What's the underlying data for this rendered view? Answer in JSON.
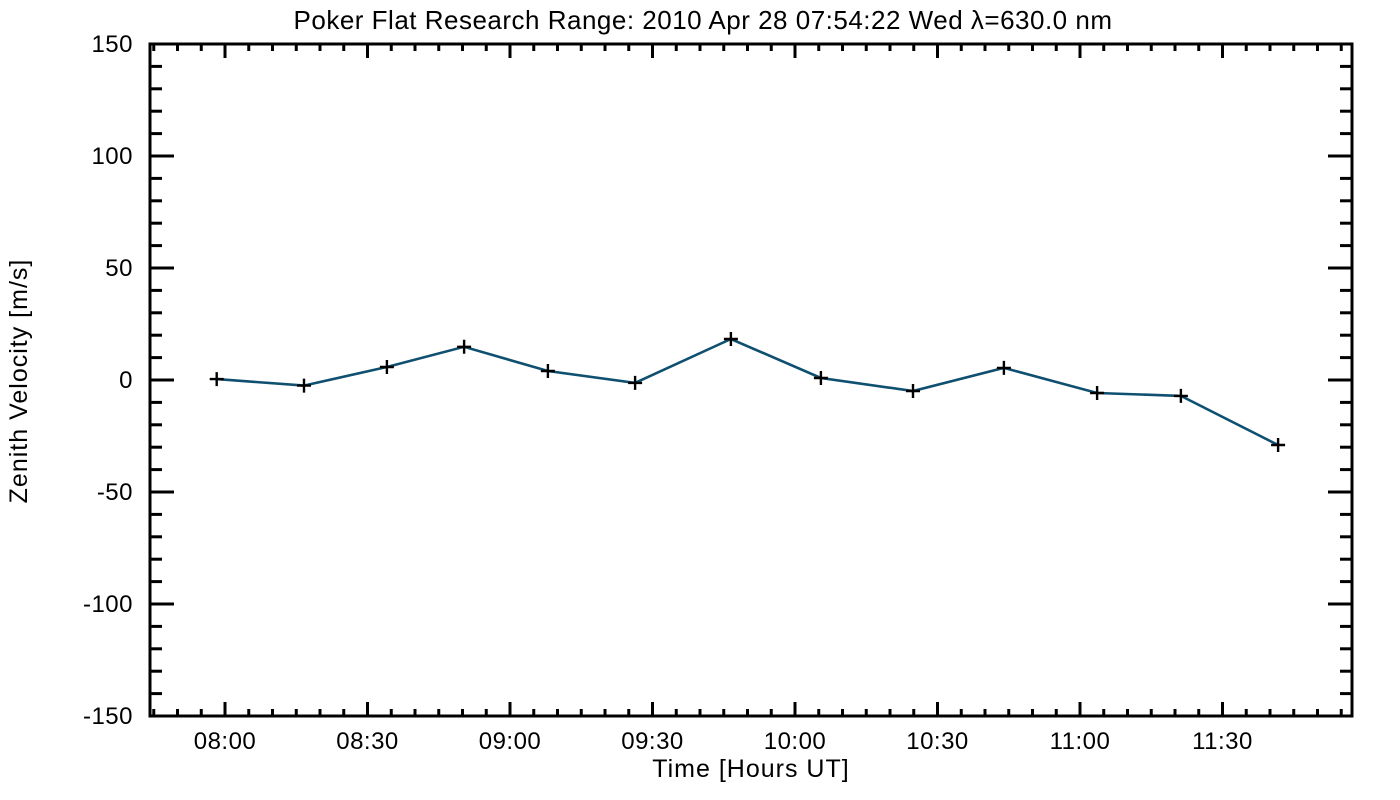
{
  "window": {
    "background_color": "#ffffff"
  },
  "chart_data": {
    "type": "line",
    "title": "Poker Flat Research Range: 2010 Apr 28 07:54:22 Wed λ=630.0 nm",
    "xlabel": "Time [Hours UT]",
    "ylabel": "Zenith Velocity [m/s]",
    "xlim": [
      7.7368,
      11.9544
    ],
    "ylim": [
      -150,
      150
    ],
    "grid": false,
    "legend": null,
    "x_major_ticks": [
      8.0,
      8.5,
      9.0,
      9.5,
      10.0,
      10.5,
      11.0,
      11.5
    ],
    "x_major_tick_labels": [
      "08:00",
      "08:30",
      "09:00",
      "09:30",
      "10:00",
      "10:30",
      "11:00",
      "11:30"
    ],
    "x_minor_step_hours": 0.0833333,
    "y_major_ticks": [
      150,
      100,
      50,
      0,
      -50,
      -100,
      -150
    ],
    "y_major_tick_labels": [
      "150",
      "100",
      "50",
      "0",
      "-50",
      "-100",
      "-150"
    ],
    "y_minor_step": 10,
    "series": [
      {
        "name": "zenith-velocity",
        "marker": "plus",
        "x_hours": [
          7.971,
          8.277,
          8.568,
          8.839,
          9.133,
          9.439,
          9.775,
          10.091,
          10.414,
          10.733,
          11.06,
          11.354,
          11.695
        ],
        "x_times_est": [
          "07:58",
          "08:17",
          "08:34",
          "08:50",
          "09:08",
          "09:26",
          "09:47",
          "10:05",
          "10:25",
          "10:44",
          "11:04",
          "11:21",
          "11:42"
        ],
        "values": [
          0.4,
          -2.5,
          5.8,
          14.8,
          4.0,
          -1.3,
          18.3,
          0.9,
          -4.9,
          5.4,
          -5.8,
          -7.1,
          -29.0
        ]
      }
    ],
    "colors": {
      "line": "#0f4f70",
      "marker": "#000000",
      "axis": "#000000",
      "background": "#ffffff"
    }
  }
}
